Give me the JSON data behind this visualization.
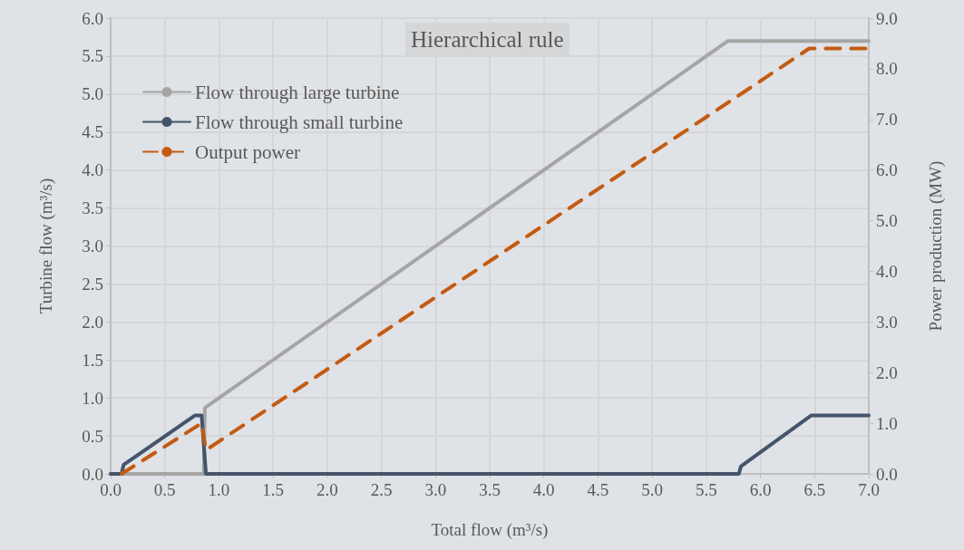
{
  "chart_data": {
    "type": "line",
    "title": "Hierarchical rule",
    "xlabel": "Total flow (m³/s)",
    "ylabel": "Turbine flow (m³/s)",
    "y2label": "Power production (MW)",
    "xlim": [
      0,
      7
    ],
    "xticks": [
      {
        "value": 0,
        "label": "0.0"
      },
      {
        "value": 0.5,
        "label": "0.5"
      },
      {
        "value": 1,
        "label": "1.0"
      },
      {
        "value": 1.5,
        "label": "1.5"
      },
      {
        "value": 2,
        "label": "2.0"
      },
      {
        "value": 2.5,
        "label": "2.5"
      },
      {
        "value": 3,
        "label": "3.0"
      },
      {
        "value": 3.5,
        "label": "3.5"
      },
      {
        "value": 4,
        "label": "4.0"
      },
      {
        "value": 4.5,
        "label": "4.5"
      },
      {
        "value": 5,
        "label": "5.0"
      },
      {
        "value": 5.5,
        "label": "5.5"
      },
      {
        "value": 6,
        "label": "6.0"
      },
      {
        "value": 6.5,
        "label": "6.5"
      },
      {
        "value": 7,
        "label": "7.0"
      }
    ],
    "ylim": [
      0,
      6
    ],
    "yticks": [
      {
        "value": 0,
        "label": "0.0"
      },
      {
        "value": 0.5,
        "label": "0.5"
      },
      {
        "value": 1,
        "label": "1.0"
      },
      {
        "value": 1.5,
        "label": "1.5"
      },
      {
        "value": 2,
        "label": "2.0"
      },
      {
        "value": 2.5,
        "label": "2.5"
      },
      {
        "value": 3,
        "label": "3.0"
      },
      {
        "value": 3.5,
        "label": "3.5"
      },
      {
        "value": 4,
        "label": "4.0"
      },
      {
        "value": 4.5,
        "label": "4.5"
      },
      {
        "value": 5,
        "label": "5.0"
      },
      {
        "value": 5.5,
        "label": "5.5"
      },
      {
        "value": 6,
        "label": "6.0"
      }
    ],
    "y2lim": [
      0,
      9
    ],
    "y2ticks": [
      {
        "value": 0,
        "label": "0.0"
      },
      {
        "value": 1,
        "label": "1.0"
      },
      {
        "value": 2,
        "label": "2.0"
      },
      {
        "value": 3,
        "label": "3.0"
      },
      {
        "value": 4,
        "label": "4.0"
      },
      {
        "value": 5,
        "label": "5.0"
      },
      {
        "value": 6,
        "label": "6.0"
      },
      {
        "value": 7,
        "label": "7.0"
      },
      {
        "value": 8,
        "label": "8.0"
      },
      {
        "value": 9,
        "label": "9.0"
      }
    ],
    "grid": true,
    "legend": "top left",
    "marker": "none",
    "series": [
      {
        "name": "Flow through large turbine",
        "color": "#a5a5a5",
        "line_style": "solid",
        "x": [
          0,
          0.86,
          0.87,
          5.7,
          7
        ],
        "values": [
          0,
          0,
          0.87,
          5.7,
          5.7
        ]
      },
      {
        "name": "Flow through small turbine",
        "color": "#44546a",
        "line_style": "solid",
        "x": [
          0,
          0.1,
          0.12,
          0.78,
          0.84,
          0.88,
          5.8,
          5.82,
          6.47,
          7
        ],
        "values": [
          0,
          0,
          0.12,
          0.77,
          0.77,
          0,
          0,
          0.1,
          0.77,
          0.77
        ]
      },
      {
        "name": "Output power",
        "color": "#c55a11",
        "line_style": "dashed",
        "axis": "y2",
        "x": [
          0.1,
          0.84,
          0.88,
          6.45,
          7
        ],
        "values": [
          0,
          1.0,
          0.47,
          8.4,
          8.4
        ]
      }
    ]
  }
}
